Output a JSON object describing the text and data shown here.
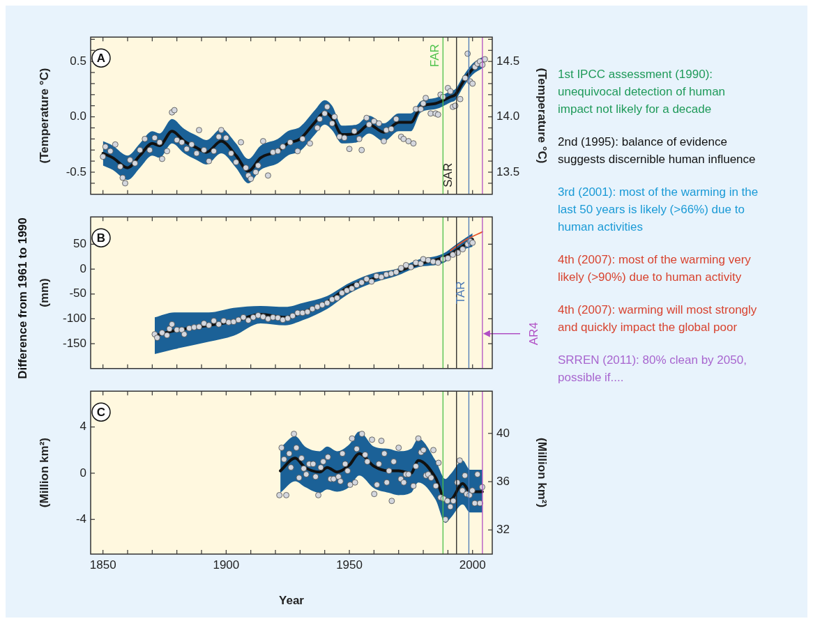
{
  "chart_data": [
    {
      "type": "line",
      "ylabel": "(Temperature °C)",
      "y2label": "(Temperature °C)",
      "xlim": [
        1845,
        2008
      ],
      "xticks": [
        1850,
        {
          "value": 1860,
          "label": null
        },
        {
          "value": 1870,
          "label": null
        },
        {
          "value": 1880,
          "label": null
        },
        {
          "value": 1890,
          "label": null
        },
        1900,
        {
          "value": 1910,
          "label": null
        },
        {
          "value": 1920,
          "label": null
        },
        {
          "value": 1930,
          "label": null
        },
        {
          "value": 1940,
          "label": null
        },
        1950,
        {
          "value": 1960,
          "label": null
        },
        {
          "value": 1970,
          "label": null
        },
        {
          "value": 1980,
          "label": null
        },
        {
          "value": 1990,
          "label": null
        },
        2000
      ],
      "ylim": [
        -0.7,
        0.72
      ],
      "yticks": [
        {
          "value": -0.6,
          "label": null
        },
        -0.5,
        {
          "value": -0.4,
          "label": null
        },
        {
          "value": -0.3,
          "label": null
        },
        {
          "value": -0.2,
          "label": null
        },
        {
          "value": -0.1,
          "label": null
        },
        {
          "value": 0,
          "label": "0.0"
        },
        {
          "value": 0.1,
          "label": null
        },
        {
          "value": 0.2,
          "label": null
        },
        {
          "value": 0.3,
          "label": null
        },
        {
          "value": 0.4,
          "label": null
        },
        0.5,
        {
          "value": 0.6,
          "label": null
        },
        {
          "value": 0.7,
          "label": null
        }
      ],
      "y2lim": [
        13.3,
        14.72
      ],
      "y2ticks": [
        {
          "value": 13.4,
          "label": null
        },
        13.5,
        {
          "value": 13.6,
          "label": null
        },
        {
          "value": 13.7,
          "label": null
        },
        {
          "value": 13.8,
          "label": null
        },
        {
          "value": 13.9,
          "label": null
        },
        {
          "value": 14,
          "label": "14.0"
        },
        {
          "value": 14.1,
          "label": null
        },
        {
          "value": 14.2,
          "label": null
        },
        {
          "value": 14.3,
          "label": null
        },
        {
          "value": 14.4,
          "label": null
        },
        14.5,
        {
          "value": 14.6,
          "label": null
        },
        {
          "value": 14.7,
          "label": null
        }
      ],
      "tick_labels": "y",
      "annotations": [
        "A"
      ],
      "ref_lines": [
        {
          "axis": "x",
          "value": 1988,
          "label": "FAR",
          "color": "#4cc24a"
        },
        {
          "axis": "x",
          "value": 1993.5,
          "label": "SAR",
          "color": "#222222"
        },
        {
          "axis": "x",
          "value": 1998.5,
          "label": null,
          "color": "#4a78b5"
        },
        {
          "axis": "x",
          "value": 2004,
          "label": null,
          "color": "#b04ec4"
        }
      ],
      "series": [
        {
          "type": "scatter",
          "marker": "circle",
          "color": "#d4d7de",
          "x": [
            1850,
            1851,
            1853,
            1855,
            1857,
            1858,
            1859,
            1861,
            1863,
            1865,
            1867,
            1869,
            1871,
            1873,
            1874,
            1876,
            1878,
            1879,
            1880,
            1882,
            1884,
            1886,
            1888,
            1889,
            1891,
            1893,
            1895,
            1897,
            1898,
            1900,
            1902,
            1904,
            1906,
            1908,
            1909,
            1910,
            1912,
            1913,
            1915,
            1917,
            1919,
            1921,
            1923,
            1926,
            1929,
            1931,
            1934,
            1937,
            1938,
            1940,
            1941,
            1943,
            1944,
            1946,
            1948,
            1950,
            1952,
            1954,
            1955,
            1957,
            1958,
            1960,
            1962,
            1964,
            1965,
            1967,
            1969,
            1971,
            1972,
            1974,
            1976,
            1977,
            1979,
            1980,
            1981,
            1983,
            1985,
            1986,
            1987,
            1988,
            1990,
            1991,
            1992,
            1993,
            1995,
            1997,
            1998,
            1999,
            2000,
            2001,
            2002,
            2003,
            2004,
            2005
          ],
          "values": [
            -0.36,
            -0.27,
            -0.31,
            -0.25,
            -0.45,
            -0.55,
            -0.6,
            -0.39,
            -0.42,
            -0.3,
            -0.2,
            -0.3,
            -0.19,
            -0.23,
            -0.38,
            -0.31,
            0.04,
            0.06,
            -0.21,
            -0.23,
            -0.29,
            -0.25,
            -0.33,
            -0.12,
            -0.3,
            -0.4,
            -0.31,
            -0.18,
            -0.12,
            -0.19,
            -0.33,
            -0.41,
            -0.23,
            -0.46,
            -0.53,
            -0.56,
            -0.5,
            -0.44,
            -0.22,
            -0.53,
            -0.32,
            -0.31,
            -0.27,
            -0.23,
            -0.31,
            -0.2,
            -0.24,
            -0.1,
            -0.02,
            0.03,
            0.09,
            -0.06,
            0,
            -0.18,
            -0.19,
            -0.29,
            -0.13,
            -0.2,
            -0.3,
            -0.01,
            -0.07,
            -0.04,
            -0.06,
            -0.22,
            -0.12,
            -0.11,
            -0.02,
            -0.18,
            -0.2,
            -0.22,
            -0.24,
            0.07,
            0.07,
            0.12,
            0.17,
            0.03,
            0.03,
            0.02,
            0.2,
            0.18,
            0.26,
            0.23,
            0.09,
            0.1,
            0.16,
            0.35,
            0.57,
            0.32,
            0.3,
            0.45,
            0.48,
            0.5,
            0.47,
            0.52
          ]
        },
        {
          "type": "line",
          "color": "#111111",
          "x": [
            1850,
            1854,
            1860,
            1865,
            1870,
            1873,
            1878,
            1883,
            1888,
            1892,
            1898,
            1904,
            1909,
            1914,
            1921,
            1925,
            1930,
            1936,
            1940,
            1943,
            1947,
            1953,
            1958,
            1964,
            1970,
            1975,
            1979,
            1985,
            1991,
            1993,
            1996,
            2000,
            2004
          ],
          "values": [
            -0.33,
            -0.37,
            -0.46,
            -0.35,
            -0.24,
            -0.26,
            -0.13,
            -0.22,
            -0.28,
            -0.32,
            -0.22,
            -0.35,
            -0.49,
            -0.37,
            -0.31,
            -0.24,
            -0.2,
            -0.05,
            0.04,
            -0.01,
            -0.16,
            -0.15,
            -0.07,
            -0.14,
            -0.05,
            -0.05,
            0.09,
            0.12,
            0.18,
            0.2,
            0.31,
            0.43,
            0.49
          ],
          "upper": [
            -0.22,
            -0.26,
            -0.35,
            -0.24,
            -0.13,
            -0.15,
            -0.02,
            -0.11,
            -0.17,
            -0.21,
            -0.11,
            -0.24,
            -0.38,
            -0.26,
            -0.2,
            -0.13,
            -0.09,
            0.06,
            0.15,
            0.1,
            -0.08,
            -0.07,
            0.01,
            -0.06,
            0.03,
            0.03,
            0.14,
            0.17,
            0.23,
            0.25,
            0.36,
            0.48,
            0.54
          ],
          "lower": [
            -0.44,
            -0.48,
            -0.57,
            -0.46,
            -0.35,
            -0.37,
            -0.24,
            -0.33,
            -0.39,
            -0.43,
            -0.33,
            -0.46,
            -0.6,
            -0.48,
            -0.42,
            -0.35,
            -0.31,
            -0.16,
            -0.07,
            -0.12,
            -0.24,
            -0.23,
            -0.15,
            -0.22,
            -0.13,
            -0.13,
            0.04,
            0.07,
            0.13,
            0.15,
            0.26,
            0.38,
            0.44
          ]
        }
      ]
    },
    {
      "type": "line",
      "ylabel": "(mm)",
      "xlim": [
        1845,
        2008
      ],
      "xticks": [
        1850,
        {
          "value": 1860,
          "label": null
        },
        {
          "value": 1870,
          "label": null
        },
        {
          "value": 1880,
          "label": null
        },
        {
          "value": 1890,
          "label": null
        },
        1900,
        {
          "value": 1910,
          "label": null
        },
        {
          "value": 1920,
          "label": null
        },
        {
          "value": 1930,
          "label": null
        },
        {
          "value": 1940,
          "label": null
        },
        1950,
        {
          "value": 1960,
          "label": null
        },
        {
          "value": 1970,
          "label": null
        },
        {
          "value": 1980,
          "label": null
        },
        {
          "value": 1990,
          "label": null
        },
        2000
      ],
      "ylim": [
        -200,
        105
      ],
      "yticks": [
        -150,
        -100,
        -50,
        0,
        50
      ],
      "tick_labels": "y",
      "annotations": [
        "B",
        "Difference from 1961 to 1990"
      ],
      "ref_lines": [
        {
          "axis": "x",
          "value": 1988,
          "label": null,
          "color": "#4cc24a"
        },
        {
          "axis": "x",
          "value": 1993.5,
          "label": null,
          "color": "#222222"
        },
        {
          "axis": "x",
          "value": 1998.5,
          "label": "TAR",
          "color": "#4a78b5"
        },
        {
          "axis": "x",
          "value": 2004,
          "label": "AR4",
          "color": "#b04ec4"
        }
      ],
      "series": [
        {
          "type": "scatter",
          "marker": "circle",
          "color": "#d4d7de",
          "x": [
            1871,
            1872,
            1874,
            1876,
            1877,
            1878,
            1880,
            1882,
            1883,
            1885,
            1887,
            1889,
            1891,
            1893,
            1895,
            1897,
            1899,
            1901,
            1903,
            1905,
            1907,
            1909,
            1911,
            1913,
            1915,
            1917,
            1919,
            1921,
            1923,
            1925,
            1927,
            1929,
            1931,
            1933,
            1935,
            1937,
            1939,
            1941,
            1943,
            1945,
            1947,
            1949,
            1951,
            1953,
            1955,
            1957,
            1959,
            1961,
            1963,
            1965,
            1967,
            1969,
            1971,
            1973,
            1975,
            1977,
            1979,
            1980,
            1982,
            1984,
            1986,
            1988,
            1990,
            1992,
            1994,
            1996,
            1998,
            1999,
            2000
          ],
          "values": [
            -131,
            -138,
            -128,
            -133,
            -120,
            -111,
            -122,
            -122,
            -131,
            -119,
            -117,
            -116,
            -109,
            -113,
            -104,
            -111,
            -104,
            -107,
            -106,
            -102,
            -97,
            -103,
            -97,
            -93,
            -96,
            -100,
            -97,
            -98,
            -102,
            -99,
            -94,
            -88,
            -88,
            -86,
            -80,
            -76,
            -72,
            -68,
            -61,
            -58,
            -48,
            -43,
            -39,
            -32,
            -27,
            -20,
            -25,
            -14,
            -16,
            -11,
            -9,
            -6,
            2,
            8,
            4,
            13,
            11,
            20,
            18,
            15,
            13,
            20,
            22,
            29,
            33,
            40,
            50,
            56,
            53
          ]
        },
        {
          "type": "line",
          "color": "#111111",
          "x": [
            1871,
            1879,
            1893,
            1903,
            1914,
            1924,
            1931,
            1941,
            1950,
            1960,
            1969,
            1978,
            1988,
            1994,
            2000
          ],
          "values": [
            -134,
            -124,
            -113,
            -105,
            -91,
            -97,
            -87,
            -66,
            -35,
            -19,
            -6,
            10,
            23,
            39,
            60
          ],
          "upper": [
            -97,
            -87,
            -87,
            -78,
            -74,
            -76,
            -68,
            -54,
            -28,
            -8,
            0,
            19,
            31,
            52,
            72
          ],
          "lower": [
            -171,
            -161,
            -146,
            -134,
            -109,
            -113,
            -103,
            -80,
            -49,
            -27,
            -14,
            4,
            12,
            35,
            45
          ]
        },
        {
          "type": "line",
          "color": "#e8562a",
          "x": [
            1991,
            1997,
            2004
          ],
          "values": [
            37,
            58,
            75
          ]
        }
      ]
    },
    {
      "type": "line",
      "xlabel": "Year",
      "ylabel": "(Million km²)",
      "y2label": "(Million km²)",
      "xlim": [
        1845,
        2008
      ],
      "xticks": [
        1850,
        {
          "value": 1860,
          "label": null
        },
        {
          "value": 1870,
          "label": null
        },
        {
          "value": 1880,
          "label": null
        },
        {
          "value": 1890,
          "label": null
        },
        1900,
        {
          "value": 1910,
          "label": null
        },
        {
          "value": 1920,
          "label": null
        },
        {
          "value": 1930,
          "label": null
        },
        {
          "value": 1940,
          "label": null
        },
        1950,
        {
          "value": 1960,
          "label": null
        },
        {
          "value": 1970,
          "label": null
        },
        {
          "value": 1980,
          "label": null
        },
        {
          "value": 1990,
          "label": null
        },
        2000
      ],
      "ylim": [
        -7,
        7.1
      ],
      "yticks": [
        -4,
        0,
        4
      ],
      "y2lim": [
        30,
        43.5
      ],
      "y2ticks": [
        32,
        36,
        40
      ],
      "annotations": [
        "C"
      ],
      "ref_lines": [
        {
          "axis": "x",
          "value": 1988,
          "label": null,
          "color": "#4cc24a"
        },
        {
          "axis": "x",
          "value": 1993.5,
          "label": null,
          "color": "#222222"
        },
        {
          "axis": "x",
          "value": 1998.5,
          "label": null,
          "color": "#4a78b5"
        },
        {
          "axis": "x",
          "value": 2004,
          "label": null,
          "color": "#b04ec4"
        }
      ],
      "series": [
        {
          "type": "scatter",
          "marker": "circle",
          "color": "#d4d7de",
          "x": [
            1921.6,
            1922.5,
            1923.5,
            1924.4,
            1925.6,
            1926.3,
            1927.5,
            1928.5,
            1929.6,
            1930.6,
            1931.5,
            1932.5,
            1933.7,
            1935.3,
            1936.3,
            1937.4,
            1938.4,
            1939.4,
            1941.3,
            1942.4,
            1943.6,
            1945.6,
            1946.4,
            1947.2,
            1948.3,
            1949.3,
            1950.3,
            1951.1,
            1952.3,
            1953,
            1955.1,
            1956.4,
            1957.3,
            1959.2,
            1960.1,
            1961.2,
            1962,
            1963,
            1964.2,
            1965.2,
            1966.1,
            1967.2,
            1968,
            1970,
            1970.9,
            1972.1,
            1973,
            1974,
            1976,
            1977,
            1978,
            1979.1,
            1980.1,
            1981.1,
            1982,
            1983.2,
            1984.1,
            1985.1,
            1986.2,
            1987,
            1988.2,
            1989,
            1989.8,
            1991,
            1992.2,
            1993.8,
            1994.8,
            1995.9,
            1996.9,
            1997.6,
            1998.8,
            1999.9,
            2000.9,
            2002,
            2003,
            2003.9
          ],
          "values": [
            -1.9,
            2.2,
            1.2,
            -1.9,
            1.7,
            0.5,
            3.4,
            2.2,
            -0.4,
            1.3,
            0.4,
            -0.1,
            0.8,
            0.8,
            -0.3,
            -1.9,
            0.5,
            1.0,
            1.4,
            -0.5,
            -0.5,
            -0.3,
            -0.7,
            1.7,
            0.8,
            0.2,
            -1.0,
            3.0,
            -0.8,
            2.1,
            3.4,
            1.6,
            1.0,
            2.9,
            -1.8,
            -1.0,
            0.8,
            2.8,
            1.7,
            -0.8,
            0.2,
            -2.4,
            1.0,
            2.2,
            -0.5,
            -0.8,
            -0.1,
            -0.1,
            -1.1,
            0.6,
            3.0,
            1.8,
            2.0,
            -0.2,
            -0.1,
            -0.4,
            2.0,
            -1.1,
            0.9,
            -2.1,
            -2.2,
            -4.0,
            -2.4,
            -2.9,
            -2.4,
            -0.8,
            1.1,
            -1.5,
            -0.2,
            -1.8,
            -1.9,
            -1.5,
            -2.6,
            -0.1,
            -2.6,
            -1.2
          ]
        },
        {
          "type": "line",
          "color": "#111111",
          "x": [
            1922,
            1928,
            1932,
            1938,
            1941,
            1945,
            1950,
            1954,
            1960,
            1966,
            1970,
            1975,
            1978,
            1985,
            1989,
            1991,
            1996,
            1999,
            2004
          ],
          "values": [
            0.2,
            1.3,
            0.5,
            0.1,
            0.5,
            0.1,
            0.7,
            1.7,
            0.6,
            0.2,
            0.2,
            0.0,
            1.1,
            -0.4,
            -2.3,
            -2.3,
            -0.9,
            -1.6,
            -1.6
          ],
          "upper": [
            2.2,
            3.2,
            2.3,
            1.9,
            2.3,
            1.9,
            2.5,
            3.6,
            2.3,
            2.1,
            1.9,
            2.1,
            3.0,
            1.1,
            -0.5,
            -0.1,
            1.1,
            0.3,
            0.3
          ],
          "lower": [
            -1.7,
            -0.7,
            -1.2,
            -1.7,
            -1.4,
            -1.6,
            -1.2,
            -0.2,
            -1.3,
            -1.7,
            -1.9,
            -1.7,
            -0.8,
            -2.3,
            -4.3,
            -3.9,
            -2.7,
            -3.4,
            -3.4
          ]
        }
      ]
    },
    {
      "type": "other",
      "annotations": [
        "1st IPCC assessment (1990): unequivocal detection of human impact not likely for a decade",
        "2nd (1995): balance of evidence suggests discernible human influence",
        "3rd (2001): most of the warming in the last 50 years is likely (>66%) due to human activities",
        "4th (2007): most of the warming very likely (>90%) due to human activity",
        "4th (2007): warming will most strongly and quickly impact the global poor",
        "SRREN (2011): 80% clean by 2050, possible if...."
      ]
    }
  ]
}
